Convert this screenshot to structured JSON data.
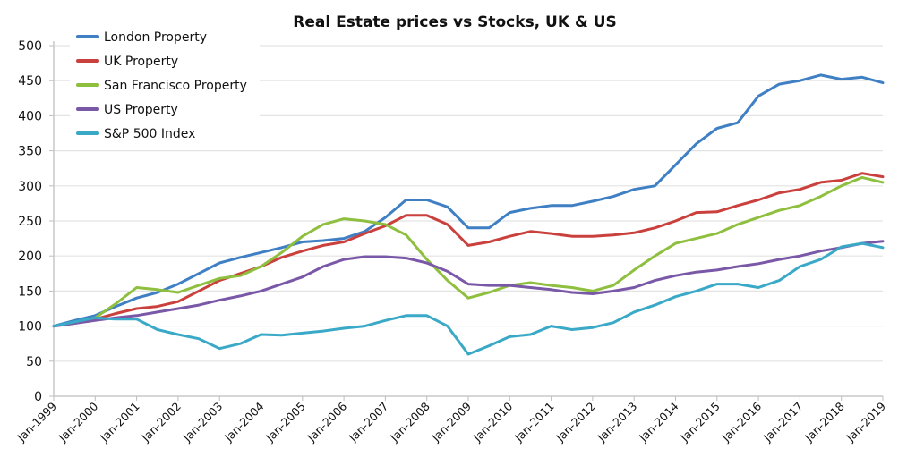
{
  "chart_data": {
    "type": "line",
    "title": "Real Estate prices vs Stocks, UK & US",
    "xlabel": "",
    "ylabel": "",
    "ylim": [
      0,
      500
    ],
    "yticks": [
      "0",
      "50",
      "100",
      "150",
      "200",
      "250",
      "300",
      "350",
      "400",
      "450",
      "500"
    ],
    "xlim": [
      1999,
      2019
    ],
    "x_tick_labels": [
      "Jan-1999",
      "Jan-2000",
      "Jan-2001",
      "Jan-2002",
      "Jan-2003",
      "Jan-2004",
      "Jan-2005",
      "Jan-2006",
      "Jan-2007",
      "Jan-2008",
      "Jan-2009",
      "Jan-2010",
      "Jan-2011",
      "Jan-2012",
      "Jan-2013",
      "Jan-2014",
      "Jan-2015",
      "Jan-2016",
      "Jan-2017",
      "Jan-2018",
      "Jan-2019"
    ],
    "grid": true,
    "legend_position": "top-left",
    "x": [
      1999,
      1999.5,
      2000,
      2000.5,
      2001,
      2001.5,
      2002,
      2002.5,
      2003,
      2003.5,
      2004,
      2004.5,
      2005,
      2005.5,
      2006,
      2006.5,
      2007,
      2007.5,
      2008,
      2008.5,
      2009,
      2009.5,
      2010,
      2010.5,
      2011,
      2011.5,
      2012,
      2012.5,
      2013,
      2013.5,
      2014,
      2014.5,
      2015,
      2015.5,
      2016,
      2016.5,
      2017,
      2017.5,
      2018,
      2018.5,
      2019
    ],
    "series": [
      {
        "name": "London Property",
        "color": "#3f7fc4",
        "values": [
          100,
          108,
          115,
          128,
          140,
          148,
          160,
          175,
          190,
          198,
          205,
          212,
          220,
          222,
          225,
          235,
          255,
          280,
          280,
          270,
          240,
          240,
          262,
          268,
          272,
          272,
          278,
          285,
          295,
          300,
          330,
          360,
          382,
          390,
          428,
          445,
          450,
          458,
          452,
          455,
          447
        ]
      },
      {
        "name": "UK Property",
        "color": "#c9403c",
        "values": [
          100,
          104,
          110,
          118,
          125,
          128,
          135,
          150,
          165,
          175,
          185,
          198,
          207,
          215,
          220,
          232,
          243,
          258,
          258,
          245,
          215,
          220,
          228,
          235,
          232,
          228,
          228,
          230,
          233,
          240,
          250,
          262,
          263,
          272,
          280,
          290,
          295,
          305,
          308,
          318,
          313
        ]
      },
      {
        "name": "San Francisco Property",
        "color": "#8fbf3f",
        "values": [
          100,
          105,
          112,
          132,
          155,
          152,
          148,
          158,
          168,
          172,
          185,
          205,
          228,
          245,
          253,
          250,
          245,
          230,
          195,
          165,
          140,
          148,
          158,
          162,
          158,
          155,
          150,
          158,
          180,
          200,
          218,
          225,
          232,
          245,
          255,
          265,
          272,
          285,
          300,
          312,
          305
        ]
      },
      {
        "name": "US Property",
        "color": "#7a58a8",
        "values": [
          100,
          104,
          108,
          112,
          115,
          120,
          125,
          130,
          137,
          143,
          150,
          160,
          170,
          185,
          195,
          199,
          199,
          197,
          190,
          178,
          160,
          158,
          158,
          155,
          152,
          148,
          146,
          150,
          155,
          165,
          172,
          177,
          180,
          185,
          189,
          195,
          200,
          207,
          212,
          218,
          221
        ]
      },
      {
        "name": "S&P 500 Index",
        "color": "#3aa9c7",
        "values": [
          100,
          106,
          112,
          110,
          110,
          95,
          88,
          82,
          68,
          75,
          88,
          87,
          90,
          93,
          97,
          100,
          108,
          115,
          115,
          100,
          60,
          72,
          85,
          88,
          100,
          95,
          98,
          105,
          120,
          130,
          142,
          150,
          160,
          160,
          155,
          165,
          185,
          195,
          213,
          218,
          212
        ]
      }
    ]
  }
}
